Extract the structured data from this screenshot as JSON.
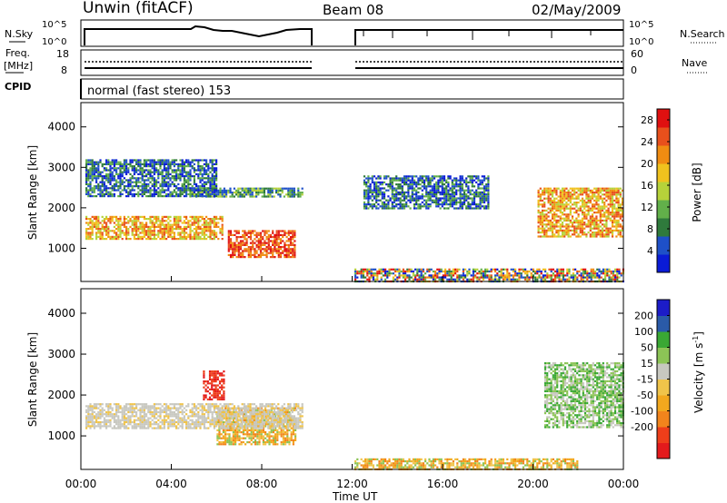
{
  "header": {
    "station": "Unwin (fitACF)",
    "beam": "Beam 08",
    "date": "02/May/2009"
  },
  "status_panel": {
    "nsky_label": "N.Sky",
    "nsky_ticks": [
      "10^5",
      "10^0"
    ],
    "nsearch_label": "N.Search",
    "nsearch_ticks": [
      "10^5",
      "10^0"
    ],
    "freq_label": "Freq.",
    "freq_unit": "[MHz]",
    "freq_ticks": [
      "18",
      "8"
    ],
    "nave_label": "Nave",
    "nave_ticks": [
      "60",
      "0"
    ],
    "cpid_label": "CPID",
    "cpid_text": "normal (fast stereo) 153"
  },
  "colors": {
    "power_scale": [
      "#0a1bd6",
      "#1e50c8",
      "#2f7a3c",
      "#62b04a",
      "#b6d23a",
      "#f0c21e",
      "#f08c12",
      "#e8501c",
      "#e01010"
    ],
    "velocity_scale": [
      "#e31a1c",
      "#ee3e1a",
      "#f2841c",
      "#f2a81e",
      "#f0c44a",
      "#c8c8c0",
      "#8cc456",
      "#3aa834",
      "#2a5aa8",
      "#1c1cc8"
    ],
    "ground_scatter": "#c8c8c0"
  },
  "chart_data": [
    {
      "type": "heatmap",
      "title": "Power",
      "xlabel": "Time UT",
      "ylabel": "Slant Range [km]",
      "x_ticks": [
        "00:00",
        "04:00",
        "08:00",
        "12:00",
        "16:00",
        "20:00",
        "00:00"
      ],
      "xlim_hours": [
        0,
        24
      ],
      "y_ticks": [
        1000,
        2000,
        3000,
        4000
      ],
      "ylim_km": [
        180,
        4600
      ],
      "colorbar": {
        "label": "Power [dB]",
        "ticks": [
          4,
          8,
          12,
          16,
          20,
          24,
          28
        ],
        "range": [
          0,
          30
        ]
      },
      "data_gap_hours": [
        10,
        12
      ],
      "regions": [
        {
          "t0": 0.2,
          "t1": 6.3,
          "r0": 1250,
          "r1": 1800,
          "level": "high"
        },
        {
          "t0": 6.5,
          "t1": 9.5,
          "r0": 800,
          "r1": 1450,
          "level": "very high"
        },
        {
          "t0": 4.8,
          "t1": 9.8,
          "r0": 2300,
          "r1": 2500,
          "level": "medium"
        },
        {
          "t0": 0.2,
          "t1": 6.0,
          "r0": 2300,
          "r1": 3200,
          "level": "low"
        },
        {
          "t0": 12.5,
          "t1": 18.0,
          "r0": 2000,
          "r1": 2800,
          "level": "low"
        },
        {
          "t0": 20.2,
          "t1": 24.0,
          "r0": 1300,
          "r1": 2500,
          "level": "high"
        },
        {
          "t0": 12.1,
          "t1": 24.0,
          "r0": 180,
          "r1": 500,
          "level": "mixed"
        }
      ]
    },
    {
      "type": "heatmap",
      "title": "Velocity",
      "xlabel": "Time UT",
      "ylabel": "Slant Range [km]",
      "x_ticks": [
        "00:00",
        "04:00",
        "08:00",
        "12:00",
        "16:00",
        "20:00",
        "00:00"
      ],
      "xlim_hours": [
        0,
        24
      ],
      "y_ticks": [
        1000,
        2000,
        3000,
        4000
      ],
      "ylim_km": [
        180,
        4600
      ],
      "colorbar": {
        "label": "Velocity [m s^-1]",
        "ticks": [
          200,
          100,
          50,
          15,
          -15,
          -50,
          -100,
          -200
        ]
      },
      "data_gap_hours": [
        10,
        12
      ],
      "regions": [
        {
          "t0": 6.0,
          "t1": 9.5,
          "r0": 800,
          "r1": 1700,
          "category": "-50"
        },
        {
          "t0": 5.4,
          "t1": 6.3,
          "r0": 1900,
          "r1": 2600,
          "category": "-200"
        },
        {
          "t0": 0.2,
          "t1": 9.8,
          "r0": 1200,
          "r1": 1800,
          "category": "ground scatter"
        },
        {
          "t0": 12.1,
          "t1": 22.0,
          "r0": 180,
          "r1": 450,
          "category": "-50"
        },
        {
          "t0": 20.5,
          "t1": 24.0,
          "r0": 1200,
          "r1": 2800,
          "category": "15"
        }
      ]
    }
  ]
}
